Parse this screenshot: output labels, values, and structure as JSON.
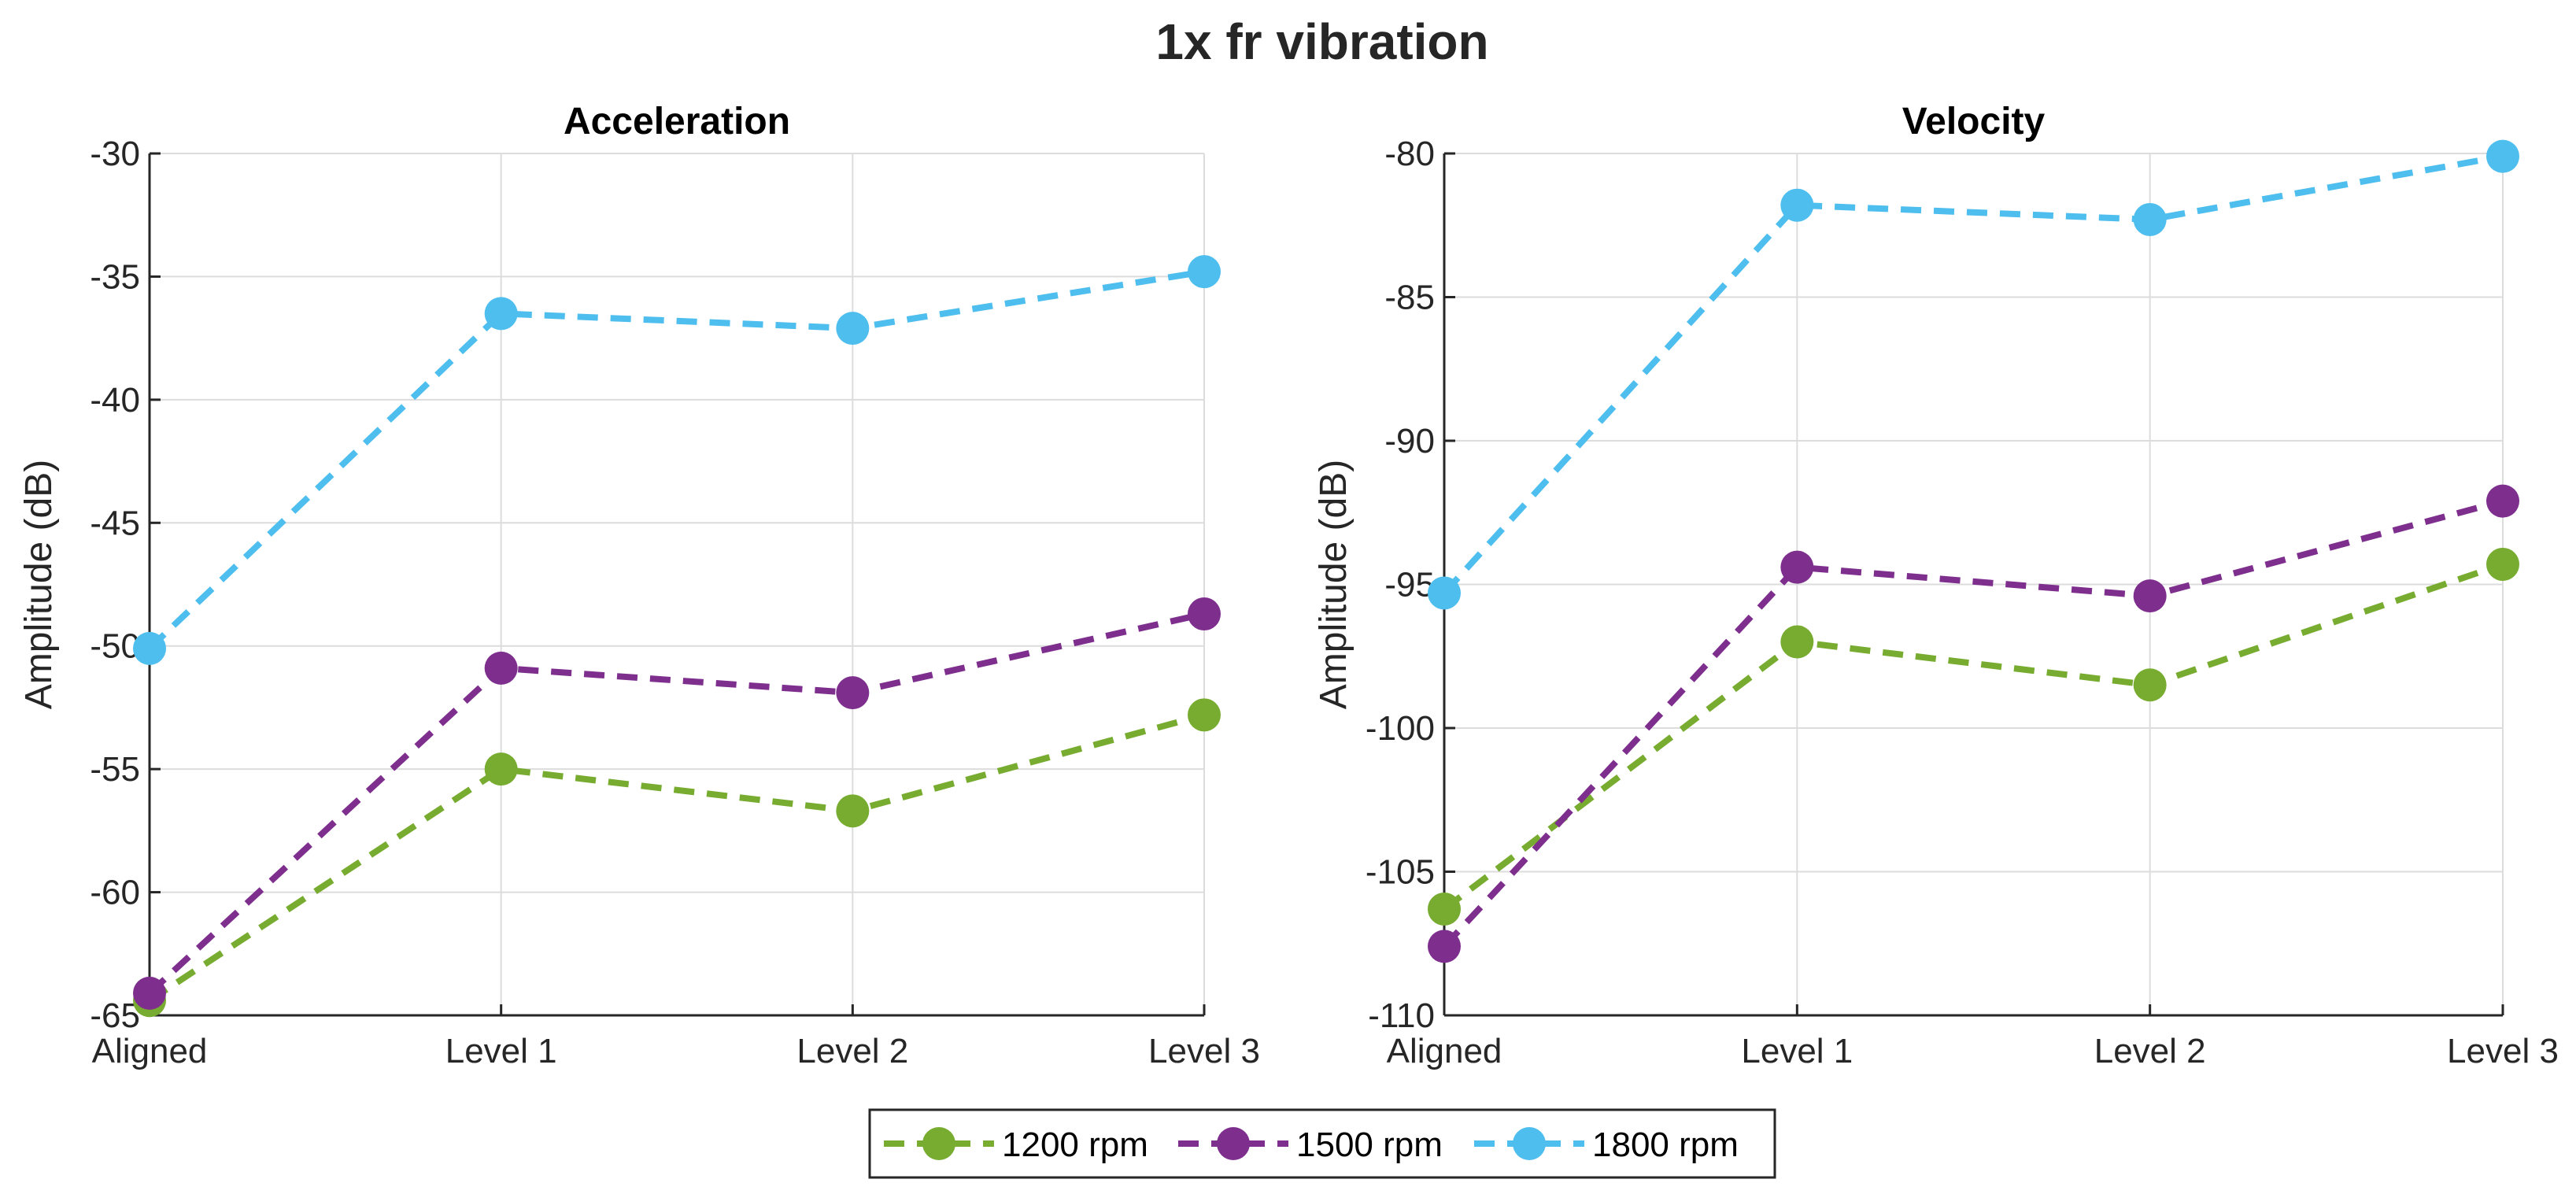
{
  "chart_data": {
    "type": "line",
    "title": "1x fr vibration",
    "categories": [
      "Aligned",
      "Level 1",
      "Level 2",
      "Level 3"
    ],
    "legend": {
      "placement": "bottom-center",
      "entries": [
        {
          "name": "1200 rpm",
          "color": "#77AC30"
        },
        {
          "name": "1500 rpm",
          "color": "#7E2F8E"
        },
        {
          "name": "1800 rpm",
          "color": "#4DBEEE"
        }
      ]
    },
    "grid": true,
    "subplots": [
      {
        "id": "acceleration",
        "title": "Acceleration",
        "ylabel": "Amplitude (dB)",
        "ylim": [
          -65,
          -30
        ],
        "yticks": [
          -65,
          -60,
          -55,
          -50,
          -45,
          -40,
          -35,
          -30
        ],
        "series": [
          {
            "name": "1200 rpm",
            "color": "#77AC30",
            "values": [
              -64.4,
              -55.0,
              -56.7,
              -52.8
            ]
          },
          {
            "name": "1500 rpm",
            "color": "#7E2F8E",
            "values": [
              -64.1,
              -50.9,
              -51.9,
              -48.7
            ]
          },
          {
            "name": "1800 rpm",
            "color": "#4DBEEE",
            "values": [
              -50.1,
              -36.5,
              -37.1,
              -34.8
            ]
          }
        ]
      },
      {
        "id": "velocity",
        "title": "Velocity",
        "ylabel": "Amplitude (dB)",
        "ylim": [
          -110,
          -80
        ],
        "yticks": [
          -110,
          -105,
          -100,
          -95,
          -90,
          -85,
          -80
        ],
        "series": [
          {
            "name": "1200 rpm",
            "color": "#77AC30",
            "values": [
              -106.3,
              -97.0,
              -98.5,
              -94.3
            ]
          },
          {
            "name": "1500 rpm",
            "color": "#7E2F8E",
            "values": [
              -107.6,
              -94.4,
              -95.4,
              -92.1
            ]
          },
          {
            "name": "1800 rpm",
            "color": "#4DBEEE",
            "values": [
              -95.3,
              -81.8,
              -82.3,
              -80.1
            ]
          }
        ]
      }
    ]
  }
}
